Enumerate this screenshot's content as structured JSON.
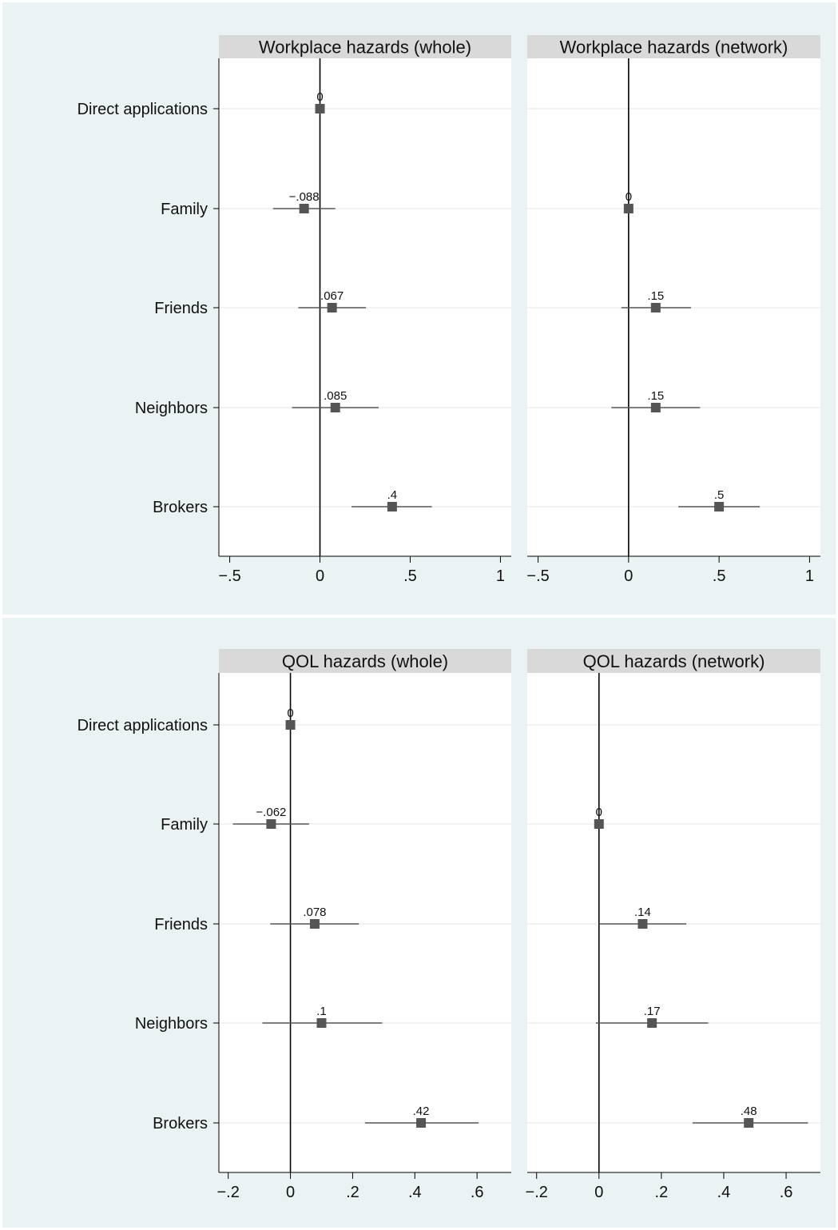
{
  "colors": {
    "band": "#eaf2f3",
    "strip": "#d9d9d9",
    "marker": "#555555"
  },
  "chart_data": [
    {
      "type": "scatter",
      "title": "Workplace hazards (whole)",
      "categories": [
        "Direct applications",
        "Family",
        "Friends",
        "Neighbors",
        "Brokers"
      ],
      "values": [
        0,
        -0.088,
        0.067,
        0.085,
        0.4
      ],
      "ci_low": [
        null,
        -0.26,
        -0.12,
        -0.155,
        0.175
      ],
      "ci_high": [
        null,
        0.085,
        0.255,
        0.325,
        0.62
      ],
      "labels": [
        "0",
        "−.088",
        ".067",
        ".085",
        ".4"
      ],
      "xlim": [
        -0.56,
        1.06
      ],
      "xticks": [
        -0.5,
        0,
        0.5,
        1
      ],
      "xtick_labels": [
        "−.5",
        "0",
        ".5",
        "1"
      ],
      "reference_line": 0,
      "grid": true
    },
    {
      "type": "scatter",
      "title": "Workplace hazards (network)",
      "categories": [
        "Direct applications",
        "Family",
        "Friends",
        "Neighbors",
        "Brokers"
      ],
      "values": [
        null,
        0,
        0.15,
        0.15,
        0.5
      ],
      "ci_low": [
        null,
        null,
        -0.04,
        -0.095,
        0.275
      ],
      "ci_high": [
        null,
        null,
        0.345,
        0.395,
        0.725
      ],
      "labels": [
        null,
        "0",
        ".15",
        ".15",
        ".5"
      ],
      "xlim": [
        -0.56,
        1.06
      ],
      "xticks": [
        -0.5,
        0,
        0.5,
        1
      ],
      "xtick_labels": [
        "−.5",
        "0",
        ".5",
        "1"
      ],
      "reference_line": 0,
      "grid": true
    },
    {
      "type": "scatter",
      "title": "QOL hazards (whole)",
      "categories": [
        "Direct applications",
        "Family",
        "Friends",
        "Neighbors",
        "Brokers"
      ],
      "values": [
        0,
        -0.062,
        0.078,
        0.1,
        0.42
      ],
      "ci_low": [
        null,
        -0.185,
        -0.065,
        -0.09,
        0.24
      ],
      "ci_high": [
        null,
        0.06,
        0.22,
        0.295,
        0.605
      ],
      "labels": [
        "0",
        "−.062",
        ".078",
        ".1",
        ".42"
      ],
      "xlim": [
        -0.23,
        0.71
      ],
      "xticks": [
        -0.2,
        0,
        0.2,
        0.4,
        0.6
      ],
      "xtick_labels": [
        "−.2",
        "0",
        ".2",
        ".4",
        ".6"
      ],
      "reference_line": 0,
      "grid": true
    },
    {
      "type": "scatter",
      "title": "QOL hazards (network)",
      "categories": [
        "Direct applications",
        "Family",
        "Friends",
        "Neighbors",
        "Brokers"
      ],
      "values": [
        null,
        0,
        0.14,
        0.17,
        0.48
      ],
      "ci_low": [
        null,
        null,
        0,
        -0.01,
        0.3
      ],
      "ci_high": [
        null,
        null,
        0.28,
        0.35,
        0.67
      ],
      "labels": [
        null,
        "0",
        ".14",
        ".17",
        ".48"
      ],
      "xlim": [
        -0.23,
        0.71
      ],
      "xticks": [
        -0.2,
        0,
        0.2,
        0.4,
        0.6
      ],
      "xtick_labels": [
        "−.2",
        "0",
        ".2",
        ".4",
        ".6"
      ],
      "reference_line": 0,
      "grid": true
    }
  ]
}
